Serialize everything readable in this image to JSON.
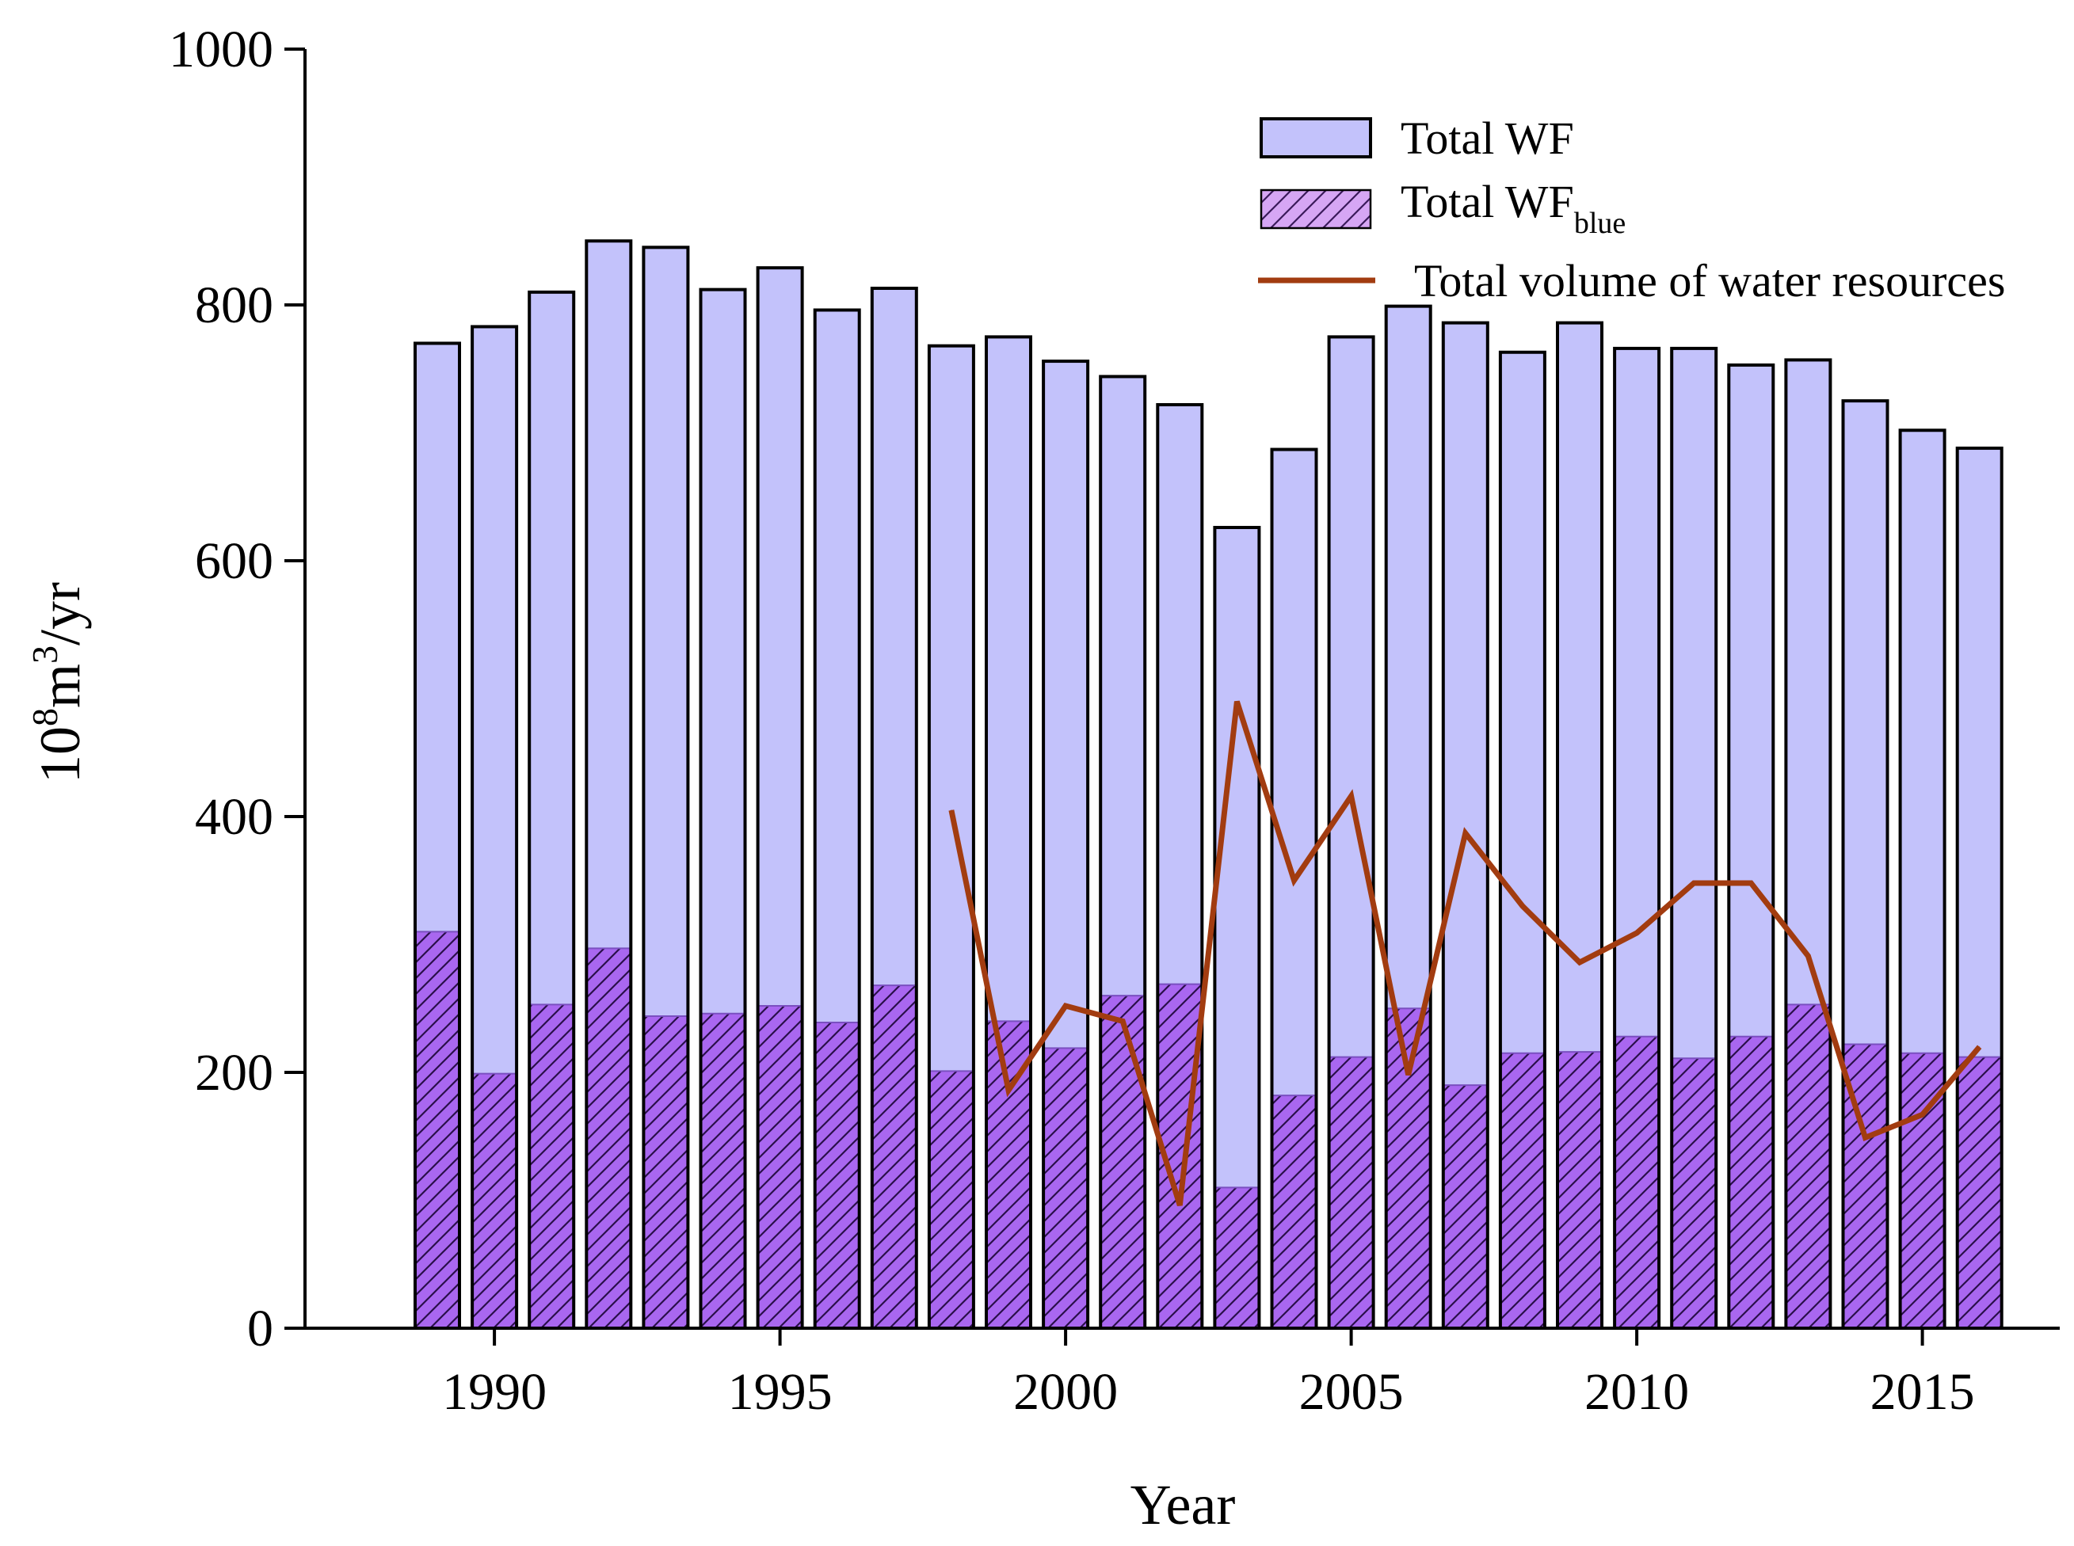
{
  "chart_data": {
    "type": "bar",
    "xlabel": "Year",
    "ylabel": {
      "base": "10",
      "exp1": "8",
      "mid": "m",
      "exp2": "3",
      "tail": "/yr"
    },
    "ylim": [
      0,
      1000
    ],
    "yticks": [
      0,
      200,
      400,
      600,
      800,
      1000
    ],
    "xticks": [
      1990,
      1995,
      2000,
      2005,
      2010,
      2015
    ],
    "categories": [
      1989,
      1990,
      1991,
      1992,
      1993,
      1994,
      1995,
      1996,
      1997,
      1998,
      1999,
      2000,
      2001,
      2002,
      2003,
      2004,
      2005,
      2006,
      2007,
      2008,
      2009,
      2010,
      2011,
      2012,
      2013,
      2014,
      2015,
      2016
    ],
    "series": [
      {
        "name": "Total WF",
        "kind": "bar",
        "color": "#c3c2fb",
        "values": [
          770,
          783,
          810,
          850,
          845,
          812,
          829,
          796,
          813,
          768,
          775,
          756,
          744,
          722,
          626,
          687,
          775,
          799,
          786,
          763,
          786,
          766,
          766,
          753,
          757,
          725,
          702,
          688
        ]
      },
      {
        "name": "Total WF",
        "subscript": "blue",
        "kind": "bar-hatched",
        "color": "#a967f0",
        "values": [
          310,
          199,
          253,
          297,
          244,
          246,
          252,
          239,
          268,
          201,
          240,
          219,
          260,
          269,
          110,
          182,
          212,
          250,
          190,
          215,
          216,
          228,
          211,
          228,
          253,
          222,
          215,
          212
        ]
      },
      {
        "name": "Total volume of water resources",
        "kind": "line",
        "color": "#a23c10",
        "x": [
          1998,
          1999,
          2000,
          2001,
          2002,
          2003,
          2004,
          2005,
          2006,
          2007,
          2008,
          2009,
          2010,
          2011,
          2012,
          2013,
          2014,
          2015,
          2016
        ],
        "values": [
          405,
          186,
          252,
          240,
          96,
          490,
          350,
          416,
          198,
          387,
          330,
          286,
          309,
          348,
          348,
          291,
          149,
          167,
          220
        ]
      }
    ],
    "legend": {
      "position": "top-right",
      "labels": [
        "Total WF",
        "Total WF",
        "Total volume of water resources"
      ],
      "blue_subscript": "blue"
    }
  }
}
